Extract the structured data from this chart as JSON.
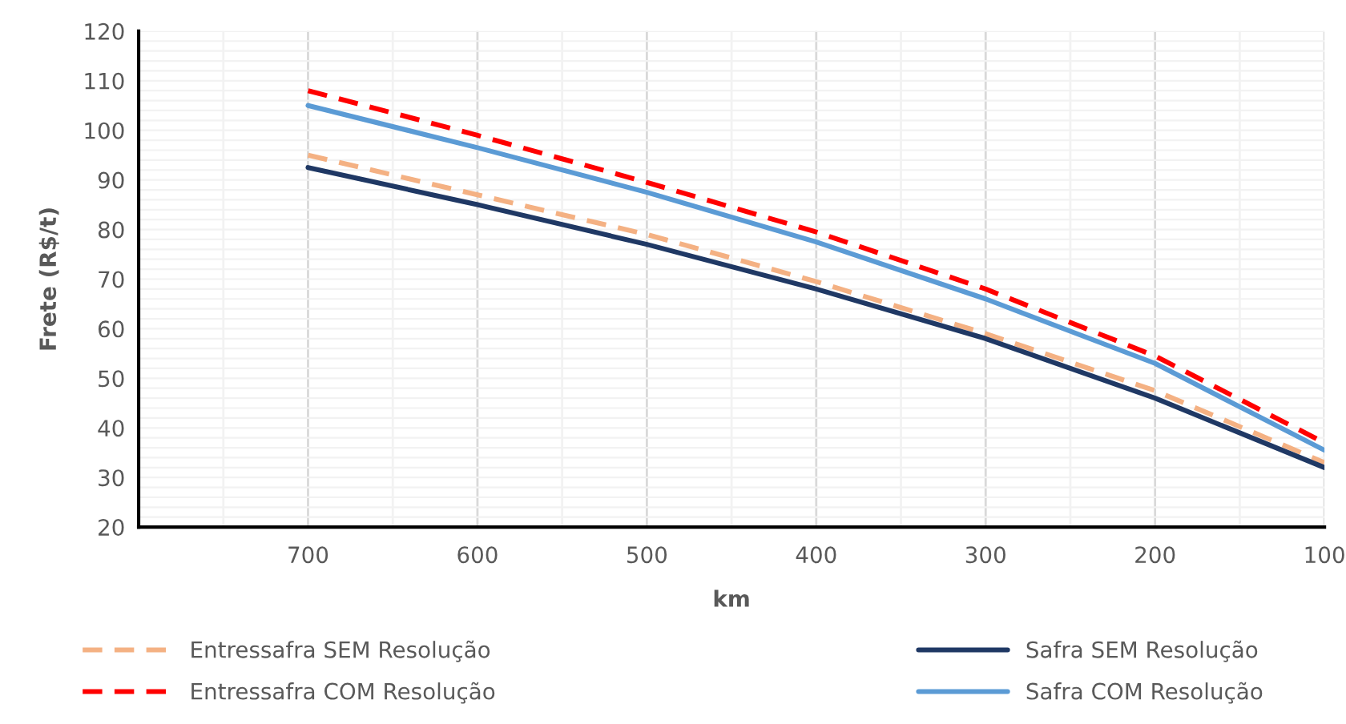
{
  "chart_data": {
    "type": "line",
    "xlabel": "km",
    "ylabel": "Frete (R$/t)",
    "x": [
      700,
      600,
      500,
      400,
      300,
      200,
      100
    ],
    "series": [
      {
        "name": "Entressafra SEM Resolução",
        "color": "#f4b183",
        "line_style": "dashed",
        "values": [
          95,
          87,
          79,
          69.5,
          59,
          47.5,
          33
        ]
      },
      {
        "name": "Entressafra COM Resolução",
        "color": "#ff0000",
        "line_style": "dashed",
        "values": [
          108,
          99,
          89.5,
          79.5,
          68,
          54.5,
          37
        ]
      },
      {
        "name": "Safra SEM Resolução",
        "color": "#1f3864",
        "line_style": "solid",
        "values": [
          92.5,
          85,
          77,
          68,
          58,
          46,
          32
        ]
      },
      {
        "name": "Safra COM Resolução",
        "color": "#5b9bd5",
        "line_style": "solid",
        "values": [
          105,
          96.5,
          87.5,
          77.5,
          66,
          53,
          35.5
        ]
      }
    ],
    "xlim": [
      800,
      100
    ],
    "xticks": [
      700,
      600,
      500,
      400,
      300,
      200,
      100
    ],
    "ylim": [
      20,
      120
    ],
    "yticks": [
      20,
      30,
      40,
      50,
      60,
      70,
      80,
      90,
      100,
      110,
      120
    ],
    "grid": true,
    "legend": "bottom",
    "marker": "none"
  }
}
